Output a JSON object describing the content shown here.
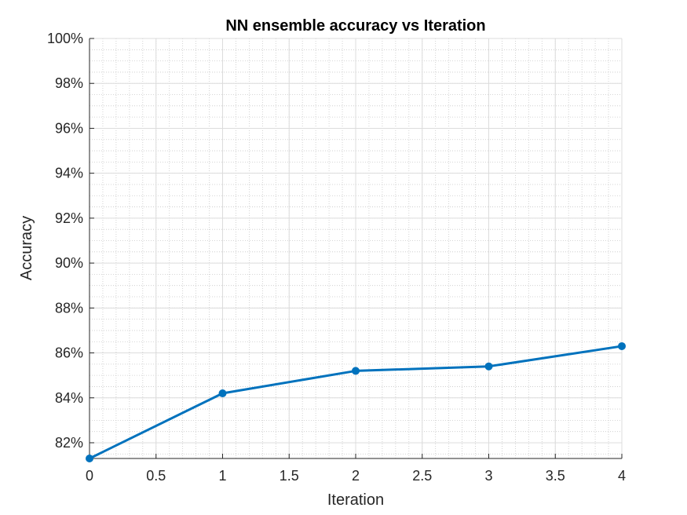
{
  "chart_data": {
    "type": "line",
    "title": "NN ensemble accuracy vs Iteration",
    "xlabel": "Iteration",
    "ylabel": "Accuracy",
    "xlim": [
      0,
      4
    ],
    "ylim": [
      81.3,
      100
    ],
    "x_ticks": [
      0,
      0.5,
      1,
      1.5,
      2,
      2.5,
      3,
      3.5,
      4
    ],
    "x_tick_labels": [
      "0",
      "0.5",
      "1",
      "1.5",
      "2",
      "2.5",
      "3",
      "3.5",
      "4"
    ],
    "y_ticks": [
      82,
      84,
      86,
      88,
      90,
      92,
      94,
      96,
      98,
      100
    ],
    "y_tick_labels": [
      "82%",
      "84%",
      "86%",
      "88%",
      "90%",
      "92%",
      "94%",
      "96%",
      "98%",
      "100%"
    ],
    "grid": true,
    "minor_grid": true,
    "series": [
      {
        "x": [
          0,
          1,
          2,
          3,
          4
        ],
        "values": [
          81.3,
          84.2,
          85.2,
          85.4,
          86.3
        ],
        "color": "#0072BD",
        "marker": "circle"
      }
    ]
  }
}
